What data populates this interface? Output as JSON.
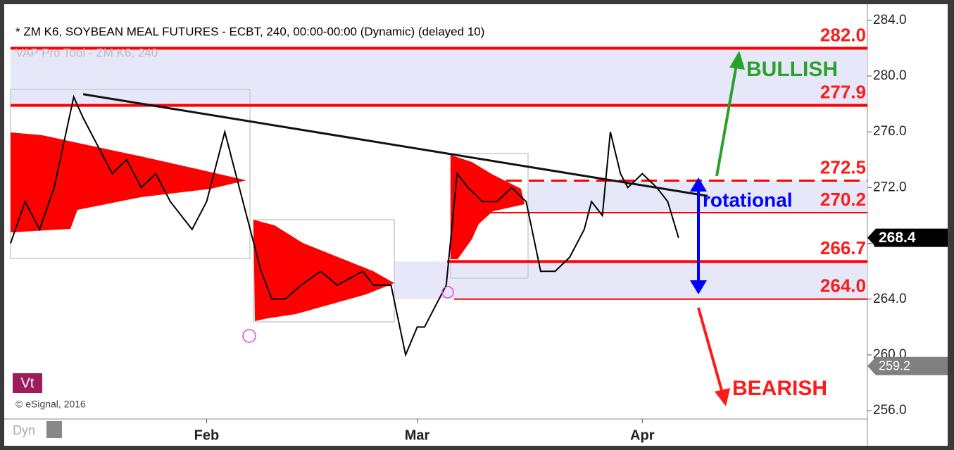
{
  "chart_data": {
    "type": "line",
    "title": "* ZM K6, SOYBEAN MEAL FUTURES - ECBT, 240, 00:00-00:00 (Dynamic) (delayed 10)",
    "subtitle": "VAP Pro Tool - ZM K6, 240",
    "copyright": "© eSignal, 2016",
    "badge": "Vt",
    "mode": "Dyn",
    "x": [
      5,
      7,
      9,
      11,
      13.7,
      15,
      17,
      19,
      21,
      23,
      25,
      27,
      30,
      32,
      34.5,
      36,
      37.5,
      39.5,
      41,
      42.8,
      45,
      47.7,
      50,
      53.5,
      55,
      57.4,
      59.4,
      61,
      62,
      64,
      65,
      66.5,
      68,
      70,
      72,
      74,
      76,
      78,
      80,
      82,
      84,
      85,
      86.5,
      87.6,
      89,
      90,
      92,
      94,
      95.5,
      97
    ],
    "series": [
      {
        "name": "ZM K6",
        "color": "#000000",
        "values": [
          268,
          271,
          269,
          272,
          278.5,
          277,
          275,
          273,
          274,
          272,
          273,
          271,
          269,
          271,
          276,
          273,
          270,
          266,
          264,
          264,
          265,
          266,
          265,
          266,
          265,
          265,
          260,
          262,
          262,
          264,
          265,
          273,
          272,
          271,
          271,
          272,
          271,
          266,
          266,
          267,
          269,
          271,
          270,
          276,
          273,
          272,
          273,
          272,
          271,
          268.4
        ]
      }
    ],
    "xlim": [
      5,
      123
    ],
    "xticks": [
      {
        "value": 32,
        "label": "Feb"
      },
      {
        "value": 61,
        "label": "Mar"
      },
      {
        "value": 92,
        "label": "Apr"
      }
    ],
    "ylim": [
      255.4,
      284.7
    ],
    "yticks": [
      {
        "value": 256,
        "label": "256.0"
      },
      {
        "value": 260,
        "label": "260.0"
      },
      {
        "value": 264,
        "label": "264.0"
      },
      {
        "value": 268,
        "label": "268.0"
      },
      {
        "value": 272,
        "label": "272.0"
      },
      {
        "value": 276,
        "label": "276.0"
      },
      {
        "value": 280,
        "label": "280.0"
      },
      {
        "value": 284,
        "label": "284.0"
      }
    ],
    "levels": [
      {
        "value": 282,
        "label": "282.0"
      },
      {
        "value": 277.9,
        "label": "277.9"
      },
      {
        "value": 272.5,
        "label": "272.5"
      },
      {
        "value": 270.2,
        "label": "270.2"
      },
      {
        "value": 266.7,
        "label": "266.7"
      },
      {
        "value": 264,
        "label": "264.0"
      }
    ],
    "trendline": {
      "x": [
        15,
        101
      ],
      "values": [
        278.7,
        271.4
      ]
    },
    "price_tags": [
      {
        "value": 268.4,
        "label": "268.4"
      },
      {
        "value": 259.2,
        "label": "259.2"
      }
    ],
    "annotations": [
      "BULLISH",
      "rotational",
      "BEARISH"
    ]
  }
}
